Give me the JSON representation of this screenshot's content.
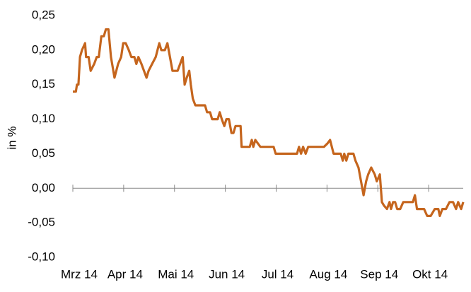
{
  "chart_data": {
    "type": "line",
    "ylabel": "in %",
    "x": [
      0,
      0.06,
      0.08,
      0.11,
      0.14,
      0.18,
      0.24,
      0.26,
      0.31,
      0.35,
      0.42,
      0.47,
      0.51,
      0.56,
      0.61,
      0.65,
      0.7,
      0.75,
      0.82,
      0.89,
      0.95,
      0.99,
      1.04,
      1.1,
      1.15,
      1.21,
      1.25,
      1.29,
      1.35,
      1.4,
      1.45,
      1.49,
      1.56,
      1.63,
      1.7,
      1.74,
      1.81,
      1.86,
      1.91,
      1.96,
      2.06,
      2.11,
      2.16,
      2.2,
      2.24,
      2.29,
      2.32,
      2.36,
      2.41,
      2.6,
      2.64,
      2.7,
      2.74,
      2.85,
      2.89,
      2.93,
      2.98,
      3.02,
      3.07,
      3.12,
      3.16,
      3.2,
      3.3,
      3.32,
      3.48,
      3.52,
      3.55,
      3.59,
      3.69,
      3.95,
      3.99,
      4.41,
      4.45,
      4.49,
      4.53,
      4.58,
      4.63,
      4.94,
      5.01,
      5.06,
      5.13,
      5.27,
      5.31,
      5.34,
      5.38,
      5.42,
      5.52,
      5.56,
      5.62,
      5.67,
      5.72,
      5.77,
      5.81,
      5.87,
      5.94,
      5.98,
      6.04,
      6.08,
      6.12,
      6.18,
      6.23,
      6.26,
      6.3,
      6.34,
      6.38,
      6.44,
      6.5,
      6.69,
      6.73,
      6.77,
      6.91,
      6.97,
      7.04,
      7.12,
      7.19,
      7.22,
      7.27,
      7.34,
      7.41,
      7.48,
      7.54,
      7.58,
      7.64,
      7.68
    ],
    "series": [
      {
        "color": "#c5651d",
        "values": [
          0.14,
          0.14,
          0.15,
          0.15,
          0.19,
          0.2,
          0.21,
          0.19,
          0.19,
          0.17,
          0.18,
          0.19,
          0.19,
          0.22,
          0.22,
          0.23,
          0.23,
          0.19,
          0.16,
          0.18,
          0.19,
          0.21,
          0.21,
          0.2,
          0.19,
          0.19,
          0.18,
          0.19,
          0.18,
          0.17,
          0.16,
          0.17,
          0.18,
          0.19,
          0.21,
          0.2,
          0.2,
          0.21,
          0.19,
          0.17,
          0.17,
          0.18,
          0.19,
          0.15,
          0.16,
          0.17,
          0.15,
          0.13,
          0.12,
          0.12,
          0.11,
          0.11,
          0.1,
          0.1,
          0.11,
          0.1,
          0.09,
          0.1,
          0.1,
          0.08,
          0.08,
          0.09,
          0.09,
          0.06,
          0.06,
          0.07,
          0.06,
          0.07,
          0.06,
          0.06,
          0.05,
          0.05,
          0.06,
          0.05,
          0.06,
          0.05,
          0.06,
          0.06,
          0.065,
          0.07,
          0.05,
          0.05,
          0.04,
          0.05,
          0.04,
          0.05,
          0.05,
          0.04,
          0.03,
          0.01,
          -0.01,
          0.01,
          0.02,
          0.03,
          0.02,
          0.01,
          0.02,
          -0.02,
          -0.025,
          -0.03,
          -0.02,
          -0.03,
          -0.02,
          -0.02,
          -0.03,
          -0.03,
          -0.02,
          -0.02,
          -0.01,
          -0.03,
          -0.03,
          -0.04,
          -0.04,
          -0.03,
          -0.03,
          -0.04,
          -0.03,
          -0.03,
          -0.02,
          -0.02,
          -0.03,
          -0.02,
          -0.03,
          -0.02
        ]
      }
    ],
    "xlim": [
      0,
      7.68
    ],
    "xticks": [
      {
        "value": 0,
        "label": "Mrz 14"
      },
      {
        "value": 1,
        "label": "Apr 14"
      },
      {
        "value": 2,
        "label": "Mai 14"
      },
      {
        "value": 3,
        "label": "Jun 14"
      },
      {
        "value": 4,
        "label": "Jul 14"
      },
      {
        "value": 5,
        "label": "Aug 14"
      },
      {
        "value": 6,
        "label": "Sep 14"
      },
      {
        "value": 7,
        "label": "Okt 14"
      }
    ],
    "ylim": [
      -0.1,
      0.25
    ],
    "yticks": [
      {
        "value": -0.1,
        "label": "-0,10"
      },
      {
        "value": -0.05,
        "label": "-0,05"
      },
      {
        "value": 0,
        "label": "0,00"
      },
      {
        "value": 0.05,
        "label": "0,05"
      },
      {
        "value": 0.1,
        "label": "0,10"
      },
      {
        "value": 0.15,
        "label": "0,15"
      },
      {
        "value": 0.2,
        "label": "0,20"
      },
      {
        "value": 0.25,
        "label": "0,25"
      }
    ],
    "grid": false
  }
}
